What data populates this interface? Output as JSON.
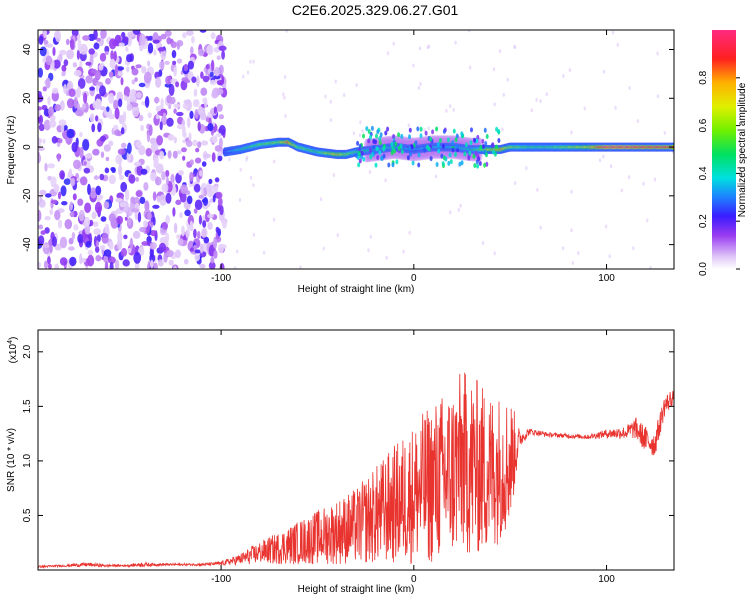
{
  "title": "C2E6.2025.329.06.27.G01",
  "colors": {
    "snr_line": "#e8332f",
    "axis": "#000000",
    "background": "#ffffff"
  },
  "chart_data": [
    {
      "type": "heatmap",
      "title": "C2E6.2025.329.06.27.G01",
      "xlabel": "Height of straight line (km)",
      "ylabel": "Frequency (Hz)",
      "xlim": [
        -195,
        135
      ],
      "ylim": [
        -50,
        48
      ],
      "xticks": [
        -100,
        0,
        100
      ],
      "xtick_labels": [
        "-100",
        "0",
        "100"
      ],
      "yticks": [
        -40,
        -20,
        0,
        20,
        40
      ],
      "ytick_labels": [
        "-40",
        "-20",
        "0",
        "20",
        "40"
      ],
      "colorbar": {
        "label": "Normalized spectral amplitude",
        "range": [
          0.0,
          1.0
        ],
        "ticks": [
          0.0,
          0.2,
          0.4,
          0.6,
          0.8
        ],
        "tick_labels": [
          "0.0",
          "0.2",
          "0.4",
          "0.6",
          "0.8"
        ]
      },
      "ridge": {
        "x": [
          -98,
          -90,
          -80,
          -70,
          -65,
          -60,
          -50,
          -40,
          -35,
          -30,
          -20,
          -10,
          0,
          10,
          20,
          30,
          40,
          45,
          50,
          60,
          70,
          80,
          90,
          100,
          110,
          120,
          130,
          135
        ],
        "freq": [
          -2,
          -1,
          1,
          2,
          2,
          0,
          -2,
          -3,
          -3,
          -2,
          -1,
          0,
          -1,
          0,
          0,
          -1,
          -1,
          -1,
          0,
          0,
          0,
          0,
          0,
          0,
          0,
          0,
          0,
          0
        ],
        "amplitude": [
          0.3,
          0.45,
          0.55,
          0.6,
          0.85,
          0.55,
          0.5,
          0.75,
          0.6,
          0.5,
          0.45,
          0.4,
          0.35,
          0.4,
          0.4,
          0.45,
          0.7,
          0.8,
          0.6,
          0.5,
          0.5,
          0.6,
          0.7,
          0.95,
          0.95,
          0.9,
          0.9,
          0.85
        ]
      },
      "noise_region_x": [
        -195,
        -98
      ]
    },
    {
      "type": "line",
      "xlabel": "Height of straight line (km)",
      "ylabel": "SNR (10 * v/v)",
      "y_multiplier": "(x10",
      "y_multiplier_exp": "4",
      "y_multiplier_close": ")",
      "xlim": [
        -195,
        135
      ],
      "ylim": [
        0,
        2.2
      ],
      "xticks": [
        -100,
        0,
        100
      ],
      "xtick_labels": [
        "-100",
        "0",
        "100"
      ],
      "yticks": [
        0.5,
        1.0,
        1.5,
        2.0
      ],
      "ytick_labels": [
        "0.5",
        "1.0",
        "1.5",
        "2.0"
      ],
      "series": [
        {
          "name": "SNR",
          "x": [
            -195,
            -180,
            -170,
            -160,
            -150,
            -140,
            -130,
            -120,
            -110,
            -100,
            -90,
            -85,
            -80,
            -70,
            -60,
            -50,
            -40,
            -30,
            -20,
            -10,
            0,
            10,
            20,
            25,
            30,
            40,
            50,
            55,
            60,
            70,
            80,
            90,
            100,
            110,
            115,
            120,
            125,
            130,
            135
          ],
          "y": [
            0.03,
            0.04,
            0.05,
            0.04,
            0.04,
            0.05,
            0.05,
            0.05,
            0.05,
            0.06,
            0.1,
            0.13,
            0.16,
            0.2,
            0.25,
            0.3,
            0.35,
            0.4,
            0.5,
            0.6,
            0.7,
            0.8,
            0.9,
            1.0,
            0.95,
            0.9,
            1.0,
            1.2,
            1.27,
            1.24,
            1.23,
            1.22,
            1.25,
            1.26,
            1.3,
            1.2,
            1.15,
            1.5,
            1.6
          ],
          "spread": [
            0.01,
            0.01,
            0.02,
            0.01,
            0.01,
            0.02,
            0.01,
            0.01,
            0.01,
            0.02,
            0.05,
            0.08,
            0.1,
            0.15,
            0.2,
            0.25,
            0.3,
            0.35,
            0.45,
            0.55,
            0.65,
            0.75,
            0.8,
            0.85,
            0.85,
            0.75,
            0.6,
            0.08,
            0.03,
            0.02,
            0.02,
            0.02,
            0.04,
            0.06,
            0.1,
            0.12,
            0.12,
            0.1,
            0.08
          ]
        }
      ]
    }
  ]
}
